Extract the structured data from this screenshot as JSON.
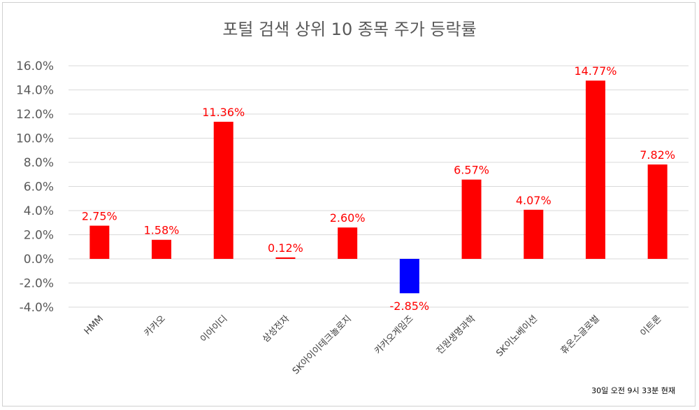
{
  "chart_data": {
    "type": "bar",
    "title": "포털 검색 상위 10 종목 주가 등락률",
    "categories": [
      "HMM",
      "카카오",
      "이아이디",
      "삼성전자",
      "SK아이이테크놀로지",
      "카카오게임즈",
      "진원생명과학",
      "SK이노베이션",
      "휴온스글로벌",
      "이트론"
    ],
    "values": [
      2.75,
      1.58,
      11.36,
      0.12,
      2.6,
      -2.85,
      6.57,
      4.07,
      14.77,
      7.82
    ],
    "value_labels": [
      "2.75%",
      "1.58%",
      "11.36%",
      "0.12%",
      "2.60%",
      "-2.85%",
      "6.57%",
      "4.07%",
      "14.77%",
      "7.82%"
    ],
    "ylim": [
      -4,
      16
    ],
    "yticks": [
      "-4.0%",
      "-2.0%",
      "0.0%",
      "2.0%",
      "4.0%",
      "6.0%",
      "8.0%",
      "10.0%",
      "12.0%",
      "14.0%",
      "16.0%"
    ],
    "xlabel": "",
    "ylabel": "",
    "grid": true,
    "legend": "none",
    "colors": {
      "positive": "#ff0000",
      "negative": "#0000ff",
      "label": "#ff0000",
      "grid": "#d9d9d9",
      "axis_text": "#595959"
    },
    "annotation": "30일 오전 9시 33분 현재"
  }
}
